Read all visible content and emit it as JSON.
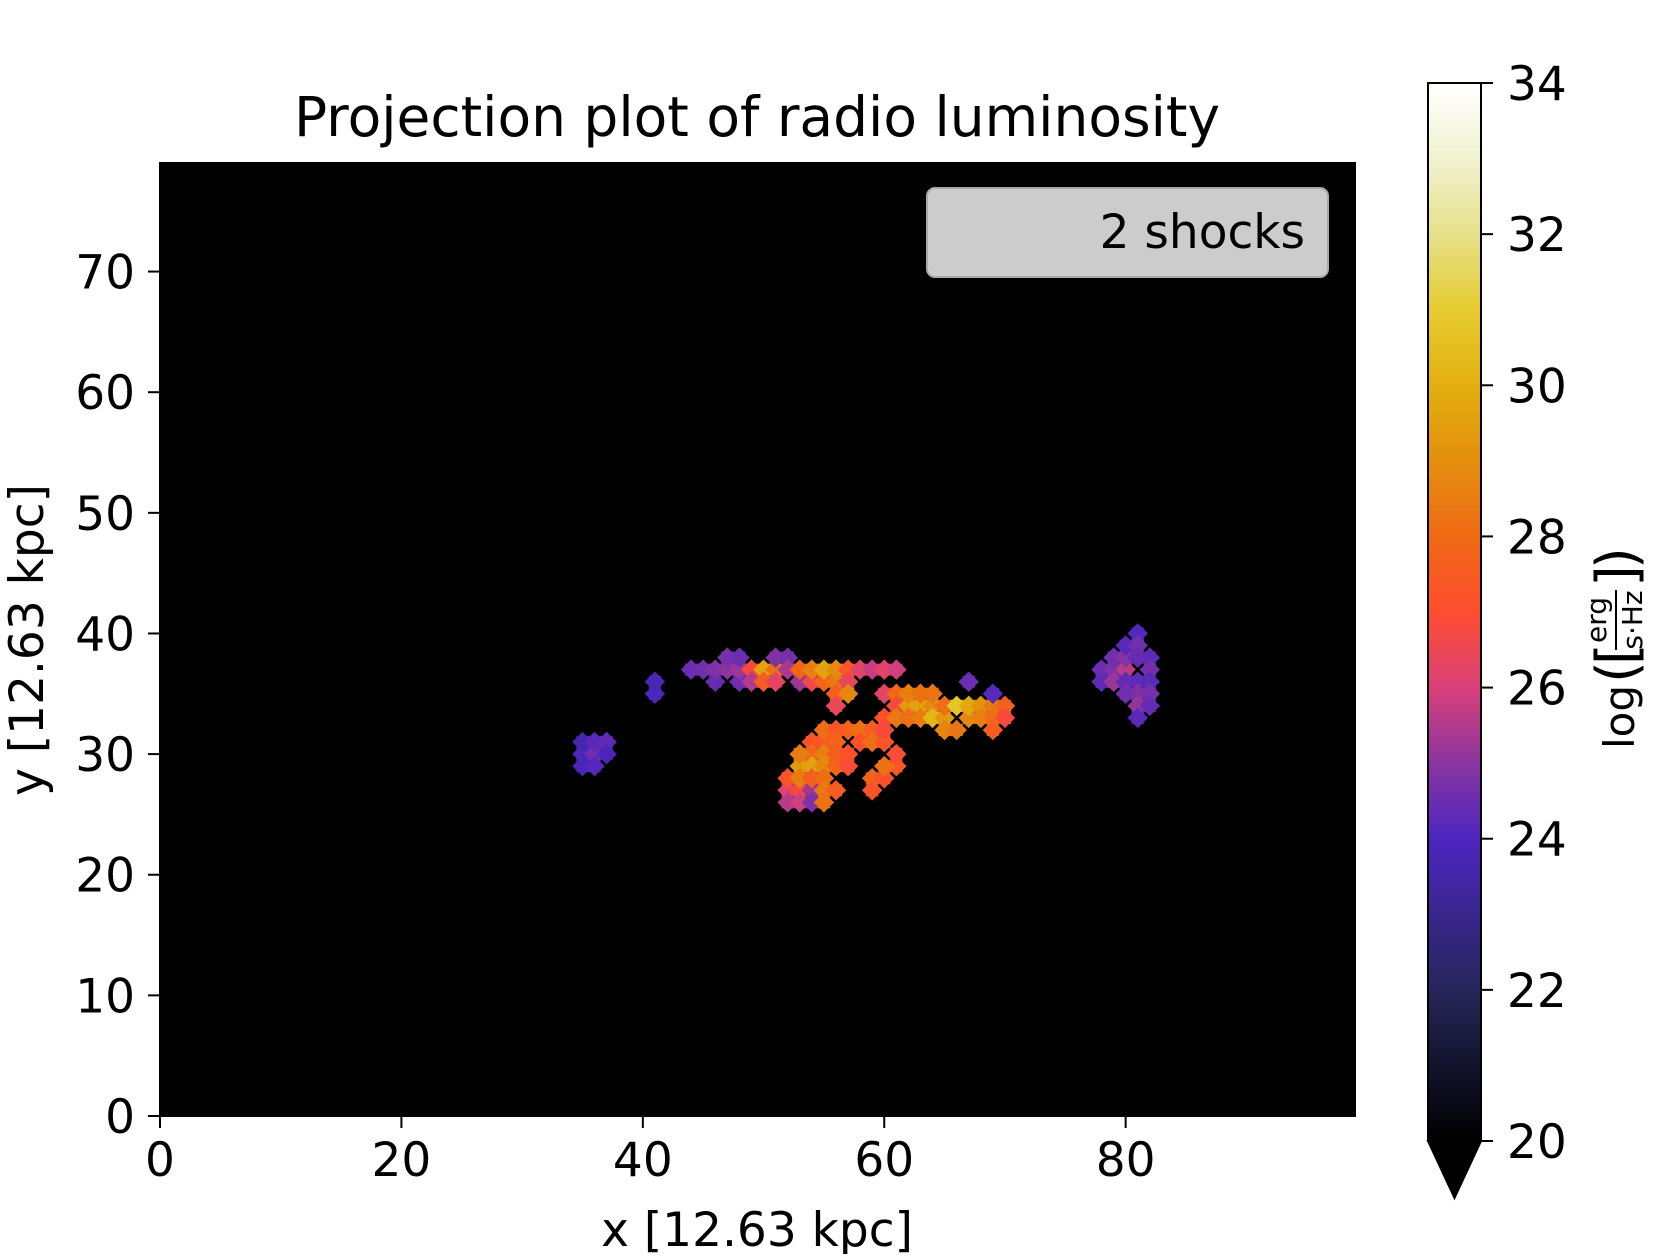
{
  "chart_data": {
    "type": "heatmap",
    "title": "Projection plot of radio luminosity",
    "xlabel": "x [12.63 kpc]",
    "ylabel": "y [12.63 kpc]",
    "xlim": [
      0,
      99
    ],
    "ylim": [
      0,
      79
    ],
    "xticks": [
      0,
      20,
      40,
      60,
      80
    ],
    "yticks": [
      0,
      10,
      20,
      30,
      40,
      50,
      60,
      70
    ],
    "background_color": "#000000",
    "grid": false,
    "annotation": {
      "text": "2 shocks",
      "placement": "top-right"
    },
    "colorbar": {
      "label_prefix": "log",
      "unit_numerator": "erg",
      "unit_denominator": "s·Hz",
      "range": [
        20,
        34
      ],
      "ticks": [
        20,
        22,
        24,
        26,
        28,
        30,
        32,
        34
      ],
      "colormap": "CMRmap",
      "extend": "min",
      "stops": [
        {
          "v": 20,
          "color": "#000000"
        },
        {
          "v": 22,
          "color": "#26265a"
        },
        {
          "v": 24,
          "color": "#4d26c0"
        },
        {
          "v": 25,
          "color": "#8a35a0"
        },
        {
          "v": 26,
          "color": "#d9407a"
        },
        {
          "v": 27,
          "color": "#ff4d2e"
        },
        {
          "v": 28,
          "color": "#ef6a14"
        },
        {
          "v": 29,
          "color": "#e38f0e"
        },
        {
          "v": 30,
          "color": "#e3b00f"
        },
        {
          "v": 31,
          "color": "#e6cc30"
        },
        {
          "v": 32,
          "color": "#e6e08a"
        },
        {
          "v": 33,
          "color": "#f2f2d0"
        },
        {
          "v": 34,
          "color": "#ffffff"
        }
      ]
    },
    "cells": [
      [
        35,
        30,
        24
      ],
      [
        35,
        31,
        23.6
      ],
      [
        36,
        30,
        24.6
      ],
      [
        36,
        31,
        24.2
      ],
      [
        35,
        29,
        23.8
      ],
      [
        36,
        29,
        24.1
      ],
      [
        37,
        31,
        24.3
      ],
      [
        37,
        30,
        23.9
      ],
      [
        41,
        35,
        24
      ],
      [
        41,
        36,
        23.8
      ],
      [
        44,
        37,
        24.5
      ],
      [
        45,
        37,
        24.6
      ],
      [
        46,
        36,
        24.4
      ],
      [
        46,
        37,
        24.8
      ],
      [
        47,
        37,
        25
      ],
      [
        47,
        38,
        24.7
      ],
      [
        48,
        36,
        24.6
      ],
      [
        48,
        37,
        25.2
      ],
      [
        48,
        38,
        24.5
      ],
      [
        49,
        37,
        26.8
      ],
      [
        49,
        36,
        25.5
      ],
      [
        50,
        37,
        29.5
      ],
      [
        50,
        36,
        27.5
      ],
      [
        51,
        37,
        28.2
      ],
      [
        51,
        38,
        24.8
      ],
      [
        51,
        36,
        26.3
      ],
      [
        52,
        38,
        24.7
      ],
      [
        52,
        37,
        25.4
      ],
      [
        53,
        36,
        25.2
      ],
      [
        53,
        37,
        27.8
      ],
      [
        54,
        36,
        26.6
      ],
      [
        54,
        37,
        28.6
      ],
      [
        55,
        36,
        27.9
      ],
      [
        55,
        37,
        29.6
      ],
      [
        56,
        36,
        28.4
      ],
      [
        56,
        37,
        28.9
      ],
      [
        57,
        37,
        27.3
      ],
      [
        57,
        36,
        26.4
      ],
      [
        58,
        37,
        26.2
      ],
      [
        59,
        37,
        25.8
      ],
      [
        60,
        37,
        26.2
      ],
      [
        61,
        37,
        25.9
      ],
      [
        56,
        35,
        27.6
      ],
      [
        57,
        35,
        28.8
      ],
      [
        56,
        34,
        26.5
      ],
      [
        60,
        35,
        26.3
      ],
      [
        61,
        35,
        27.9
      ],
      [
        61,
        34,
        26.8
      ],
      [
        60,
        33,
        27.1
      ],
      [
        61,
        33,
        28.4
      ],
      [
        62,
        34,
        29.3
      ],
      [
        62,
        33,
        28.1
      ],
      [
        62,
        35,
        28.6
      ],
      [
        63,
        34,
        29.6
      ],
      [
        63,
        33,
        28.5
      ],
      [
        63,
        35,
        28.2
      ],
      [
        64,
        34,
        28.9
      ],
      [
        64,
        33,
        30.2
      ],
      [
        64,
        35,
        28.3
      ],
      [
        65,
        33,
        29.3
      ],
      [
        65,
        32,
        28.7
      ],
      [
        65,
        34,
        28.1
      ],
      [
        66,
        34,
        30.8
      ],
      [
        66,
        32,
        28.3
      ],
      [
        67,
        33,
        28.8
      ],
      [
        67,
        34,
        29.8
      ],
      [
        68,
        34,
        29.1
      ],
      [
        68,
        33,
        28.6
      ],
      [
        69,
        34,
        28.4
      ],
      [
        69,
        33,
        28.1
      ],
      [
        69,
        32,
        27.5
      ],
      [
        70,
        34,
        27.7
      ],
      [
        70,
        33,
        26.8
      ],
      [
        67,
        36,
        24.5
      ],
      [
        69,
        35,
        24.2
      ],
      [
        57,
        32,
        27.8
      ],
      [
        58,
        32,
        28.2
      ],
      [
        58,
        31,
        27.1
      ],
      [
        59,
        32,
        27.6
      ],
      [
        59,
        31,
        28.1
      ],
      [
        60,
        31,
        27.3
      ],
      [
        60,
        32,
        26.8
      ],
      [
        55,
        31,
        27.4
      ],
      [
        55,
        32,
        28.1
      ],
      [
        56,
        32,
        27.3
      ],
      [
        56,
        31,
        27.8
      ],
      [
        54,
        31,
        27.2
      ],
      [
        54,
        30,
        27.9
      ],
      [
        55,
        30,
        28.6
      ],
      [
        53,
        29,
        29.3
      ],
      [
        53,
        30,
        28.5
      ],
      [
        54,
        29,
        29.6
      ],
      [
        55,
        29,
        28.8
      ],
      [
        56,
        29,
        27.9
      ],
      [
        56,
        30,
        27.6
      ],
      [
        57,
        30,
        27.2
      ],
      [
        57,
        29,
        26.9
      ],
      [
        52,
        27,
        26.2
      ],
      [
        52,
        26,
        25.6
      ],
      [
        53,
        27,
        26.8
      ],
      [
        53,
        26,
        25.9
      ],
      [
        54,
        27,
        25.2
      ],
      [
        54,
        26,
        24.8
      ],
      [
        52,
        28,
        27.2
      ],
      [
        53,
        28,
        28.5
      ],
      [
        54,
        28,
        27.6
      ],
      [
        55,
        28,
        28.1
      ],
      [
        55,
        27,
        28.4
      ],
      [
        55,
        26,
        28.2
      ],
      [
        56,
        27,
        27.5
      ],
      [
        59,
        28,
        27.8
      ],
      [
        59,
        27,
        27.2
      ],
      [
        60,
        28,
        27.1
      ],
      [
        61,
        29,
        27.4
      ],
      [
        60,
        29,
        28.2
      ],
      [
        61,
        30,
        26.9
      ],
      [
        78,
        37,
        24.5
      ],
      [
        78,
        36,
        24.3
      ],
      [
        79,
        37,
        24.8
      ],
      [
        79,
        36,
        25.2
      ],
      [
        79,
        38,
        24.6
      ],
      [
        80,
        37,
        25.6
      ],
      [
        80,
        38,
        24.9
      ],
      [
        80,
        39,
        24.2
      ],
      [
        80,
        36,
        24.4
      ],
      [
        81,
        40,
        24.1
      ],
      [
        81,
        39,
        24.6
      ],
      [
        81,
        38,
        24.4
      ],
      [
        81,
        36,
        24.3
      ],
      [
        81,
        35,
        24.8
      ],
      [
        81,
        34,
        25.1
      ],
      [
        80,
        35,
        24.6
      ],
      [
        81,
        33,
        24.2
      ],
      [
        82,
        38,
        24.3
      ],
      [
        82,
        37,
        24.6
      ],
      [
        82,
        36,
        24.2
      ],
      [
        82,
        35,
        24.7
      ],
      [
        82,
        34,
        24.4
      ]
    ]
  }
}
